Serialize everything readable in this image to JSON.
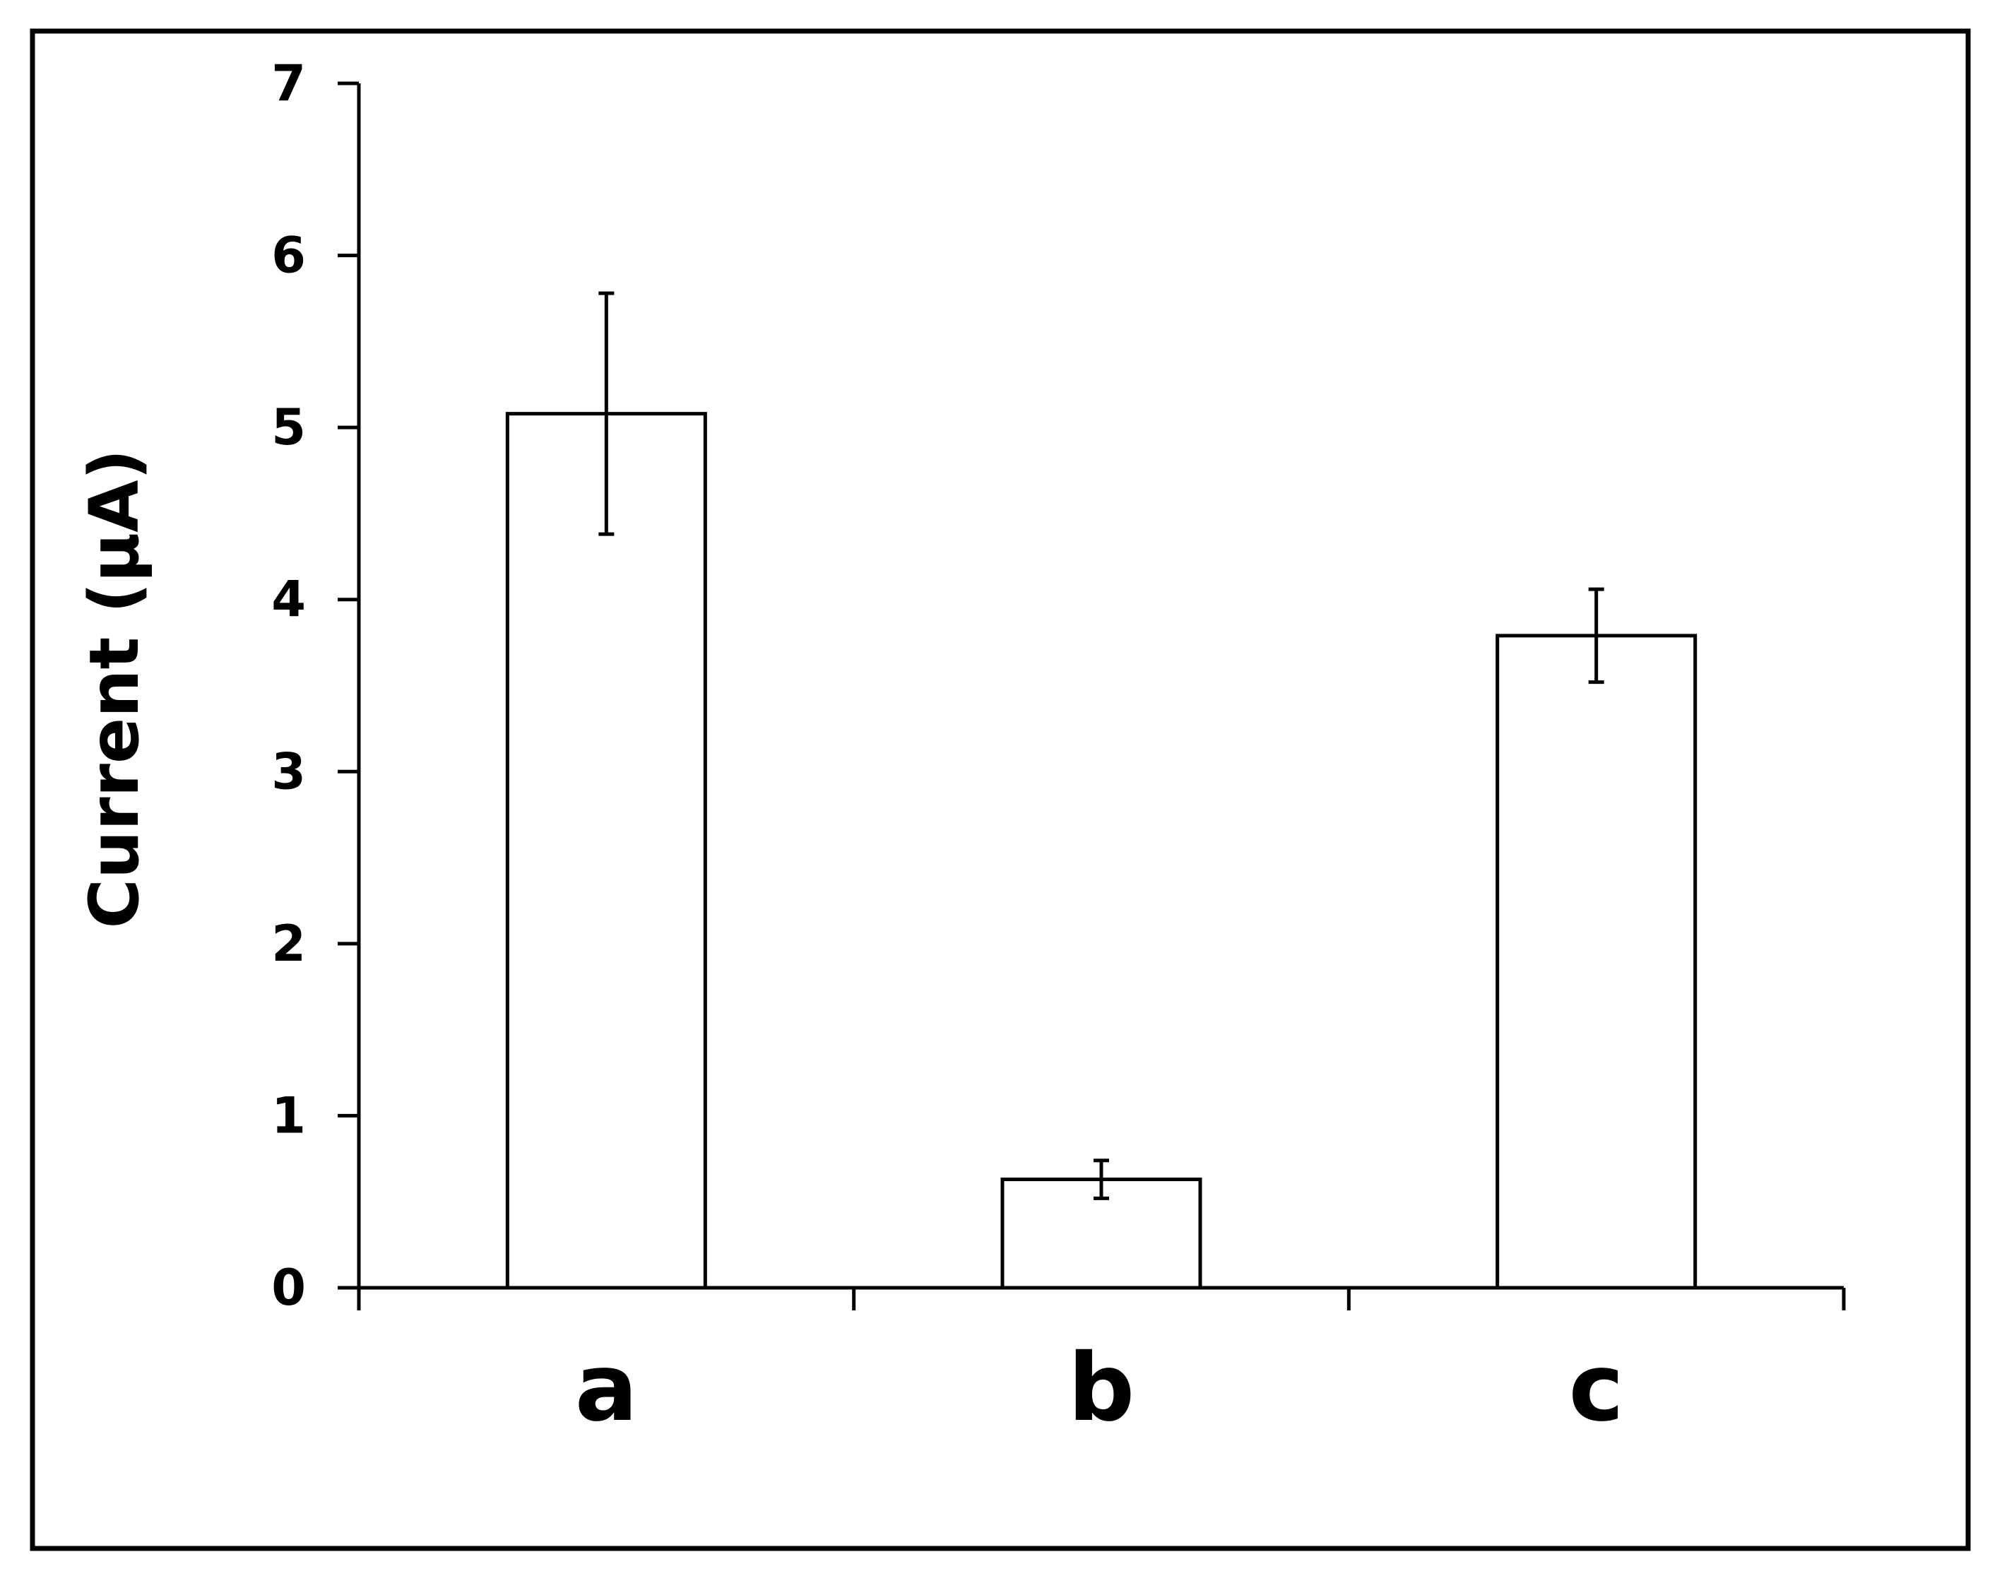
{
  "chart_data": {
    "type": "bar",
    "title": "",
    "xlabel": "",
    "ylabel": "Current (μA)",
    "categories": [
      "a",
      "b",
      "c"
    ],
    "values": [
      5.08,
      0.63,
      3.79
    ],
    "error": [
      0.7,
      0.11,
      0.27
    ],
    "ylim": [
      0,
      7
    ],
    "yticks": [
      0,
      1,
      2,
      3,
      4,
      5,
      6,
      7
    ],
    "grid": false,
    "legend": "none",
    "colors": {
      "bar_fill": "#ffffff",
      "bar_stroke": "#000000",
      "axis": "#000000",
      "frame": "#000000"
    }
  }
}
